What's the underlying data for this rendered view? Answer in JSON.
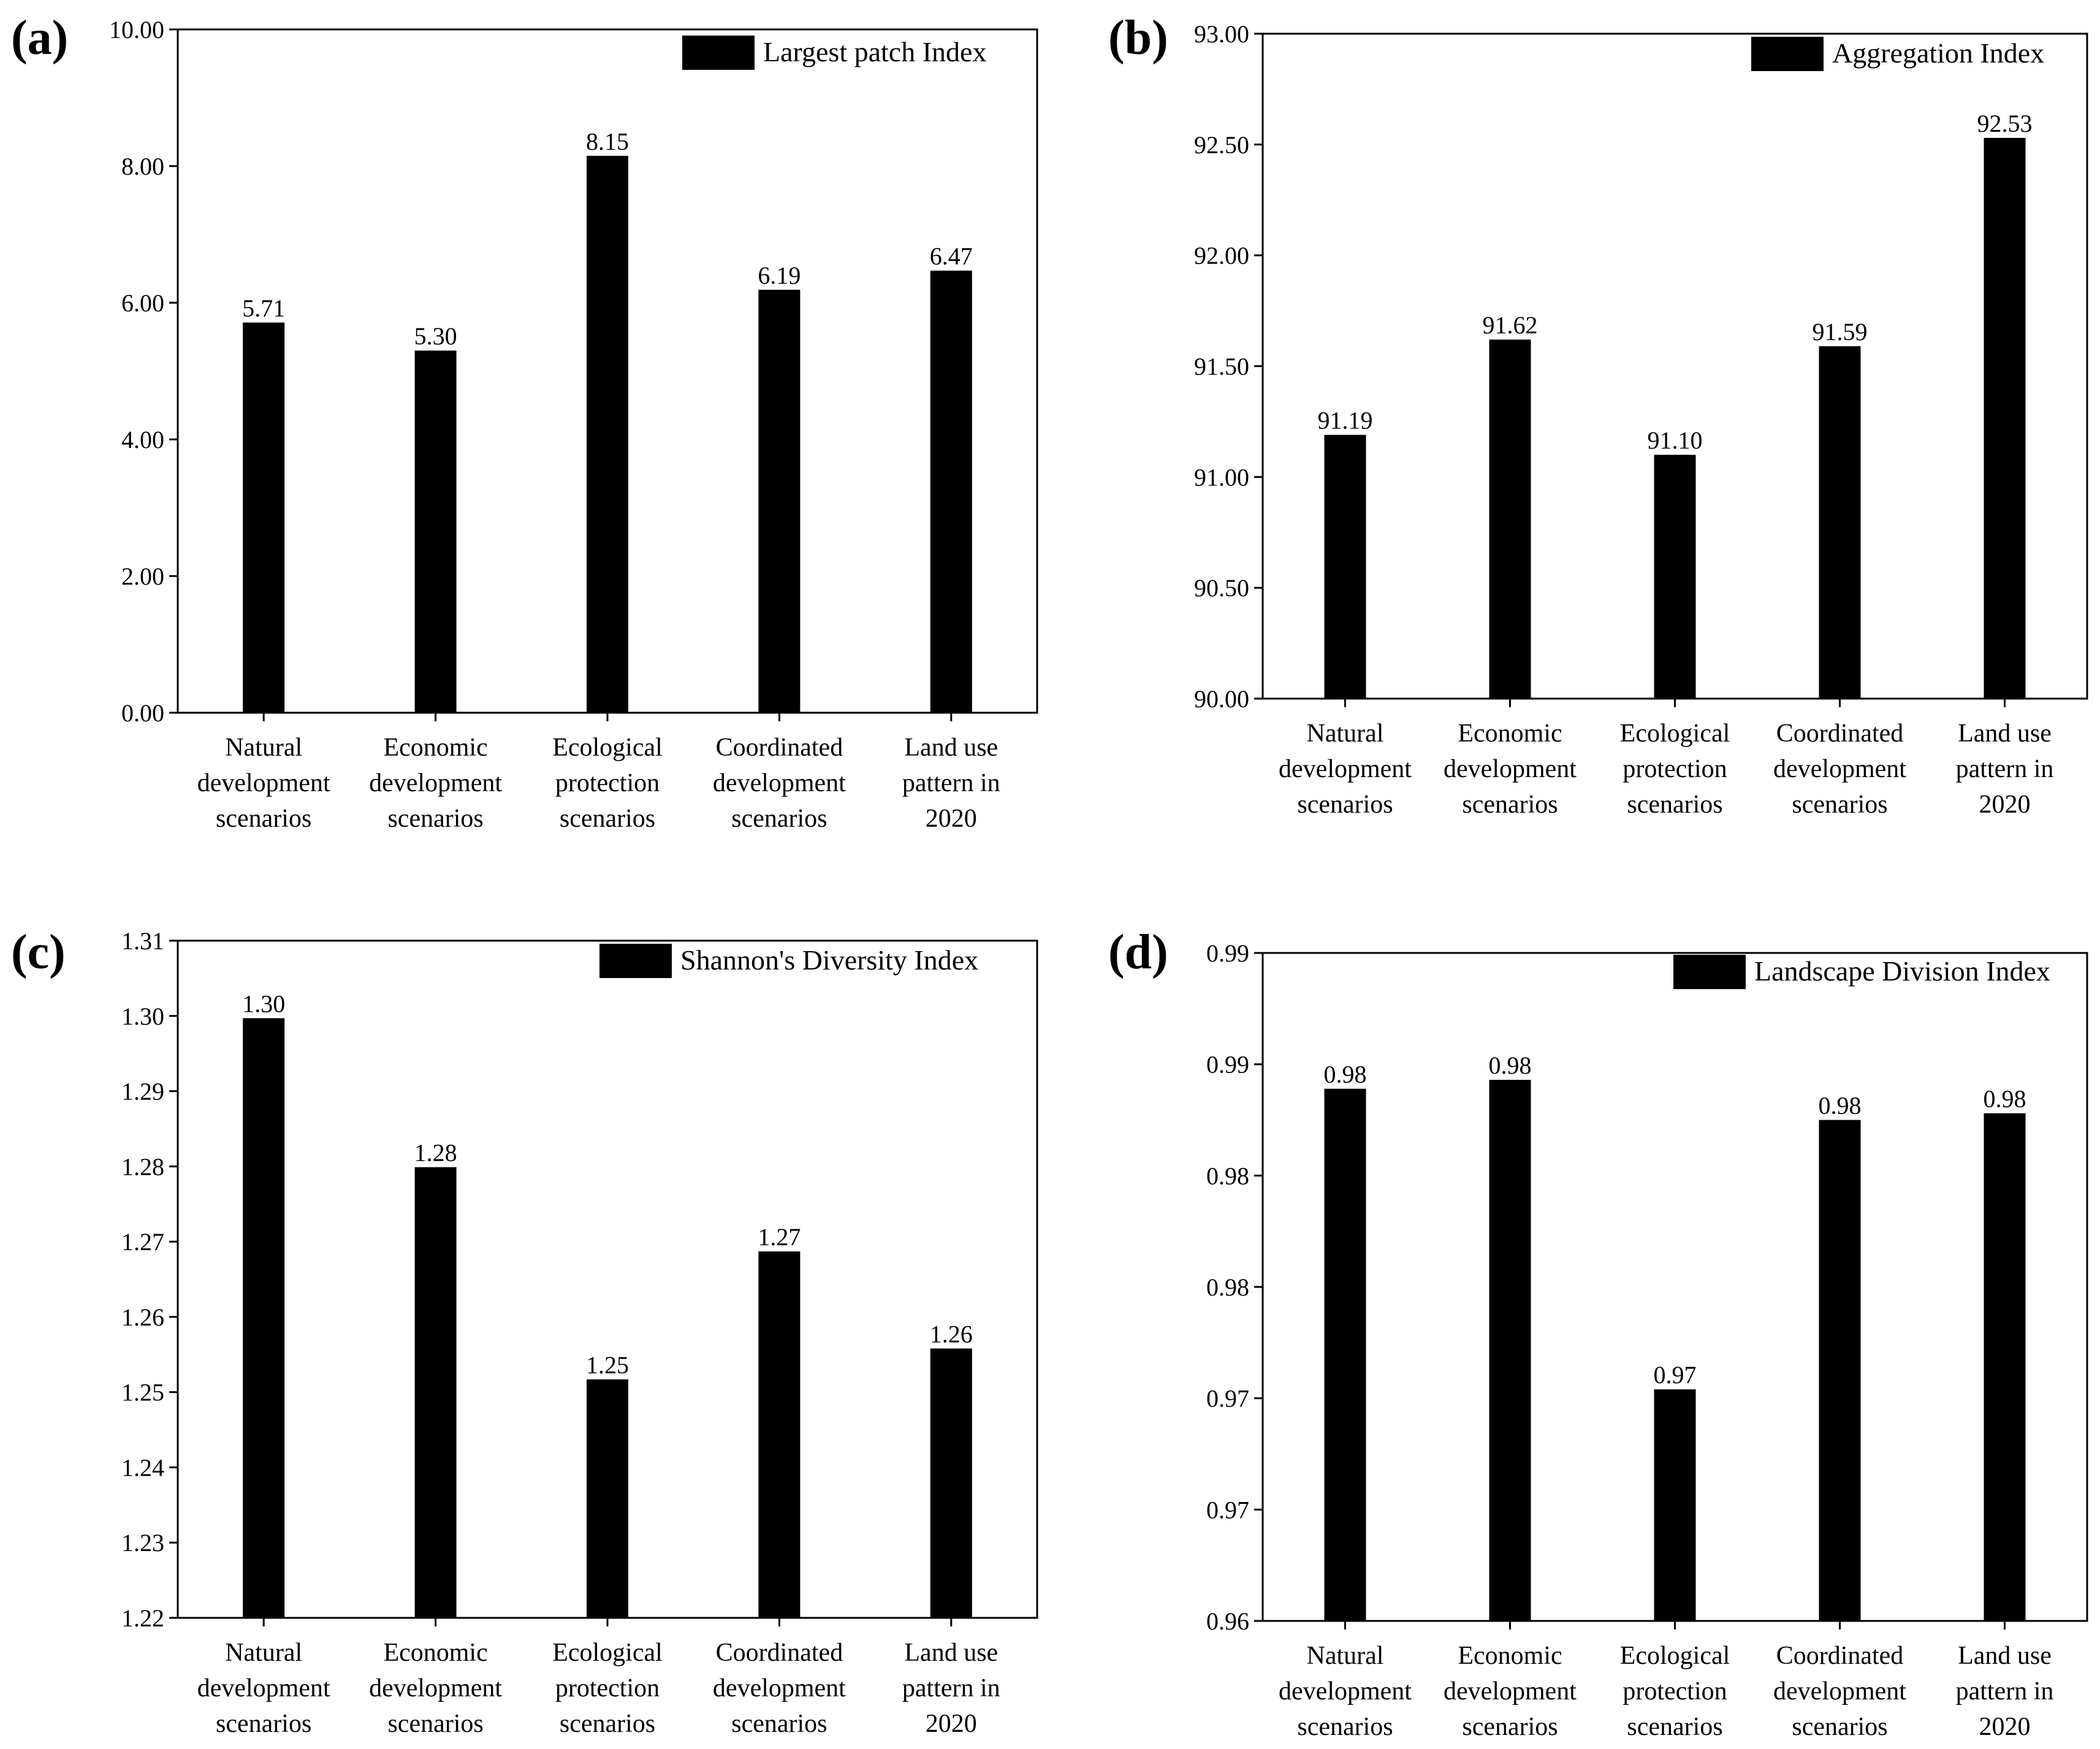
{
  "chart_data": [
    {
      "panel": "(a)",
      "type": "bar",
      "categories": [
        "Natural development scenarios",
        "Economic development scenarios",
        "Ecological protection scenarios",
        "Coordinated development scenarios",
        "Land use pattern in 2020"
      ],
      "category_lines": [
        [
          "Natural",
          "development",
          "scenarios"
        ],
        [
          "Economic",
          "development",
          "scenarios"
        ],
        [
          "Ecological",
          "protection",
          "scenarios"
        ],
        [
          "Coordinated",
          "development",
          "scenarios"
        ],
        [
          "Land use",
          "pattern in",
          "2020"
        ]
      ],
      "values": [
        5.71,
        5.3,
        8.15,
        6.19,
        6.47
      ],
      "value_labels": [
        "5.71",
        "5.30",
        "8.15",
        "6.19",
        "6.47"
      ],
      "legend": "Largest patch Index",
      "ylim": [
        0,
        10
      ],
      "yticks": [
        0,
        2,
        4,
        6,
        8,
        10
      ],
      "ytick_labels": [
        "0.00",
        "2.00",
        "4.00",
        "6.00",
        "8.00",
        "10.00"
      ],
      "color": "#000000"
    },
    {
      "panel": "(b)",
      "type": "bar",
      "categories": [
        "Natural development scenarios",
        "Economic development scenarios",
        "Ecological protection scenarios",
        "Coordinated development scenarios",
        "Land use pattern in 2020"
      ],
      "category_lines": [
        [
          "Natural",
          "development",
          "scenarios"
        ],
        [
          "Economic",
          "development",
          "scenarios"
        ],
        [
          "Ecological",
          "protection",
          "scenarios"
        ],
        [
          "Coordinated",
          "development",
          "scenarios"
        ],
        [
          "Land use",
          "pattern in",
          "2020"
        ]
      ],
      "values": [
        91.19,
        91.62,
        91.1,
        91.59,
        92.53
      ],
      "value_labels": [
        "91.19",
        "91.62",
        "91.10",
        "91.59",
        "92.53"
      ],
      "legend": "Aggregation Index",
      "ylim": [
        90,
        93
      ],
      "yticks": [
        90,
        90.5,
        91,
        91.5,
        92,
        92.5,
        93
      ],
      "ytick_labels": [
        "90.00",
        "90.50",
        "91.00",
        "91.50",
        "92.00",
        "92.50",
        "93.00"
      ],
      "color": "#000000"
    },
    {
      "panel": "(c)",
      "type": "bar",
      "categories": [
        "Natural development scenarios",
        "Economic development scenarios",
        "Ecological protection scenarios",
        "Coordinated development scenarios",
        "Land use pattern in 2020"
      ],
      "category_lines": [
        [
          "Natural",
          "development",
          "scenarios"
        ],
        [
          "Economic",
          "development",
          "scenarios"
        ],
        [
          "Ecological",
          "protection",
          "scenarios"
        ],
        [
          "Coordinated",
          "development",
          "scenarios"
        ],
        [
          "Land use",
          "pattern in",
          "2020"
        ]
      ],
      "values": [
        1.2997,
        1.2799,
        1.2517,
        1.2687,
        1.2558
      ],
      "value_labels": [
        "1.30",
        "1.28",
        "1.25",
        "1.27",
        "1.26"
      ],
      "legend": "Shannon's Diversity Index",
      "ylim": [
        1.22,
        1.31
      ],
      "yticks": [
        1.22,
        1.23,
        1.24,
        1.25,
        1.26,
        1.27,
        1.28,
        1.29,
        1.3,
        1.31
      ],
      "ytick_labels": [
        "1.22",
        "1.23",
        "1.24",
        "1.25",
        "1.26",
        "1.27",
        "1.28",
        "1.29",
        "1.30",
        "1.31"
      ],
      "color": "#000000"
    },
    {
      "panel": "(d)",
      "type": "bar",
      "categories": [
        "Natural development scenarios",
        "Economic development scenarios",
        "Ecological protection scenarios",
        "Coordinated development scenarios",
        "Land use pattern in 2020"
      ],
      "category_lines": [
        [
          "Natural",
          "development",
          "scenarios"
        ],
        [
          "Economic",
          "development",
          "scenarios"
        ],
        [
          "Ecological",
          "protection",
          "scenarios"
        ],
        [
          "Coordinated",
          "development",
          "scenarios"
        ],
        [
          "Land use",
          "pattern in",
          "2020"
        ]
      ],
      "values": [
        0.9839,
        0.9843,
        0.9704,
        0.9825,
        0.9828
      ],
      "value_labels": [
        "0.98",
        "0.98",
        "0.97",
        "0.98",
        "0.98"
      ],
      "legend": "Landscape Division Index",
      "ylim": [
        0.96,
        0.99
      ],
      "yticks": [
        0.96,
        0.965,
        0.97,
        0.975,
        0.98,
        0.985,
        0.99
      ],
      "ytick_labels": [
        "0.96",
        "0.97",
        "0.97",
        "0.98",
        "0.98",
        "0.99",
        "0.99"
      ],
      "color": "#000000"
    }
  ]
}
